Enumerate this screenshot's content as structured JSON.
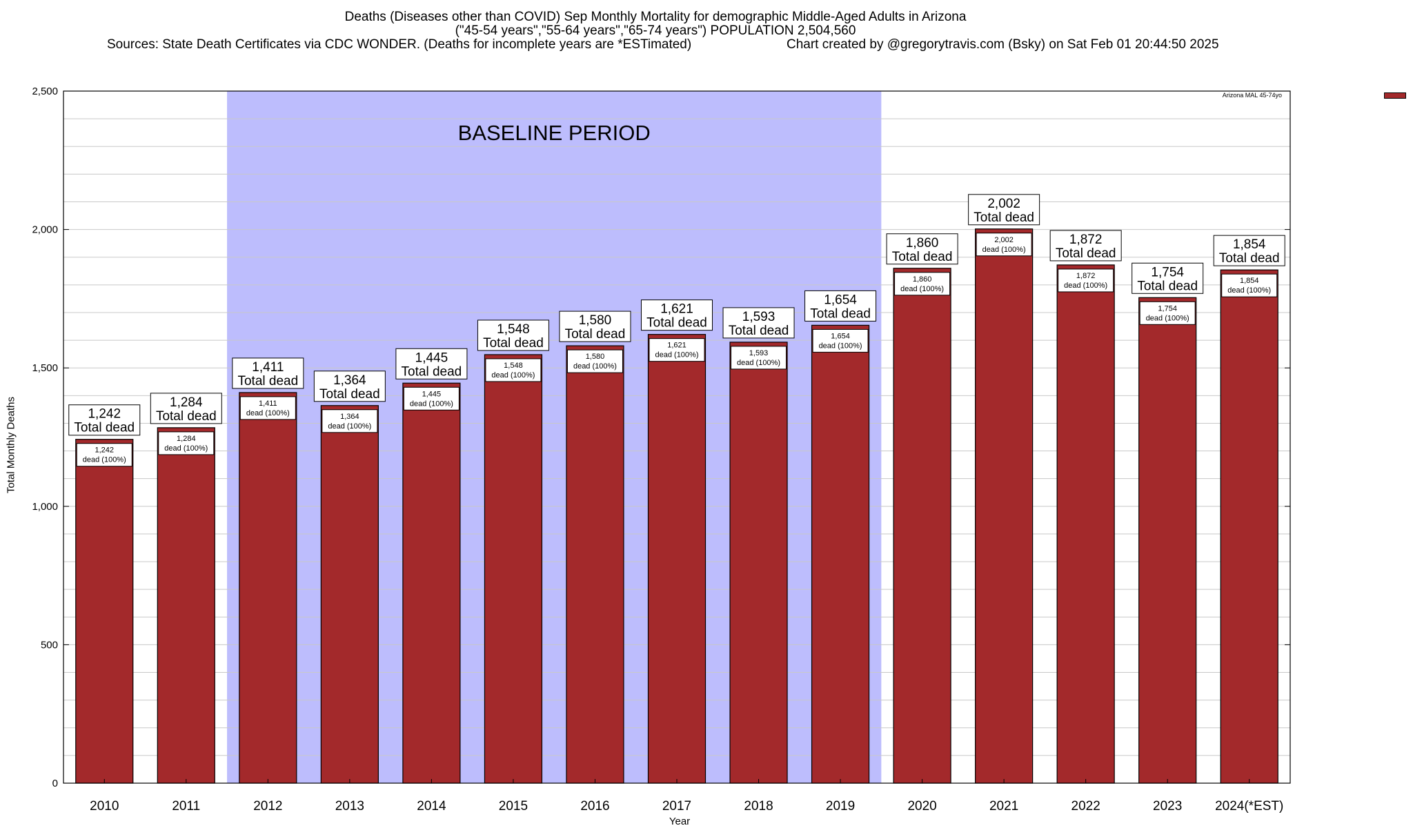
{
  "title_lines": [
    "Deaths (Diseases other than COVID) Sep Monthly Mortality for demographic Middle-Aged Adults in Arizona",
    "(\"45-54 years\",\"55-64 years\",\"65-74 years\") POPULATION 2,504,560",
    "Sources: State Death Certificates via CDC WONDER. (Deaths for incomplete years are *ESTimated)",
    "Chart created by @gregorytravis.com (Bsky) on Sat Feb 01 20:44:50 2025"
  ],
  "colors": {
    "bar": "#a3292b",
    "baseline_fill": "#bdbdfd",
    "grid": "#c8c8c8"
  },
  "chart_data": {
    "type": "bar",
    "xlabel": "Year",
    "ylabel": "Total Monthly Deaths",
    "ylim": [
      0,
      2500
    ],
    "yticks": [
      0,
      500,
      1000,
      1500,
      2000,
      2500
    ],
    "ytick_labels": [
      "0",
      "500",
      "1,000",
      "1,500",
      "2,000",
      "2,500"
    ],
    "grid": true,
    "legend_position": "top-right",
    "categories": [
      "2010",
      "2011",
      "2012",
      "2013",
      "2014",
      "2015",
      "2016",
      "2017",
      "2018",
      "2019",
      "2020",
      "2021",
      "2022",
      "2023",
      "2024(*EST)"
    ],
    "series": [
      {
        "name": "Arizona MAL 45-74yo",
        "values": [
          1242,
          1284,
          1411,
          1364,
          1445,
          1548,
          1580,
          1621,
          1593,
          1654,
          1860,
          2002,
          1872,
          1754,
          1854
        ]
      }
    ],
    "bar_top_labels": [
      "1,242",
      "1,284",
      "1,411",
      "1,364",
      "1,445",
      "1,548",
      "1,580",
      "1,621",
      "1,593",
      "1,654",
      "1,860",
      "2,002",
      "1,872",
      "1,754",
      "1,854"
    ],
    "top_label_suffix": "Total dead",
    "inner_label_suffix": "dead (100%)",
    "shaded_region": {
      "label": "BASELINE PERIOD",
      "from_category": "2012",
      "to_category": "2019"
    }
  }
}
